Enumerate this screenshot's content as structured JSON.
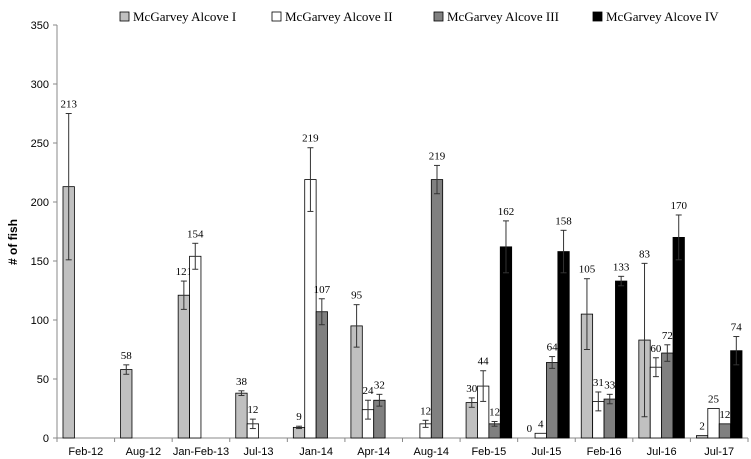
{
  "chart_data": {
    "type": "bar",
    "title": "",
    "xlabel": "",
    "ylabel": "# of fish",
    "ylim": [
      0,
      350
    ],
    "yticks": [
      0,
      50,
      100,
      150,
      200,
      250,
      300,
      350
    ],
    "grid": false,
    "legend_position": "top",
    "categories": [
      "Feb-12",
      "Aug-12",
      "Jan-Feb-13",
      "Jul-13",
      "Jan-14",
      "Apr-14",
      "Aug-14",
      "Feb-15",
      "Jul-15",
      "Feb-16",
      "Jul-16",
      "Jul-17"
    ],
    "series": [
      {
        "name": "McGarvey Alcove I",
        "color": "#c0c0c0",
        "values": [
          213,
          58,
          121,
          38,
          9,
          95,
          null,
          30,
          0,
          105,
          83,
          2
        ],
        "labels": [
          "213",
          "58",
          "121",
          "38",
          "9",
          "95",
          "",
          "30",
          "0",
          "105",
          "83",
          "2"
        ],
        "errors": [
          62,
          4,
          12,
          2,
          1,
          18,
          null,
          4,
          0,
          30,
          65,
          0
        ]
      },
      {
        "name": "McGarvey Alcove II",
        "color": "#ffffff",
        "values": [
          null,
          null,
          154,
          12,
          219,
          24,
          12,
          44,
          4,
          31,
          60,
          25
        ],
        "labels": [
          "",
          "",
          "154",
          "12",
          "219",
          "24",
          "12",
          "44",
          "4",
          "31",
          "60",
          "25"
        ],
        "errors": [
          null,
          null,
          11,
          4,
          27,
          8,
          3,
          13,
          0,
          8,
          8,
          0
        ]
      },
      {
        "name": "McGarvey Alcove III",
        "color": "#808080",
        "values": [
          null,
          null,
          null,
          null,
          107,
          32,
          219,
          12,
          64,
          33,
          72,
          12
        ],
        "labels": [
          "",
          "",
          "",
          "",
          "107",
          "32",
          "219",
          "12",
          "64",
          "33",
          "72",
          "12"
        ],
        "errors": [
          null,
          null,
          null,
          null,
          11,
          5,
          12,
          2,
          5,
          4,
          7,
          0
        ]
      },
      {
        "name": "McGarvey Alcove IV",
        "color": "#000000",
        "values": [
          null,
          null,
          null,
          null,
          null,
          null,
          null,
          162,
          158,
          133,
          170,
          74
        ],
        "labels": [
          "",
          "",
          "",
          "",
          "",
          "",
          "",
          "162",
          "158",
          "133",
          "170",
          "74"
        ],
        "errors": [
          null,
          null,
          null,
          null,
          null,
          null,
          null,
          22,
          18,
          4,
          19,
          12
        ]
      }
    ]
  }
}
